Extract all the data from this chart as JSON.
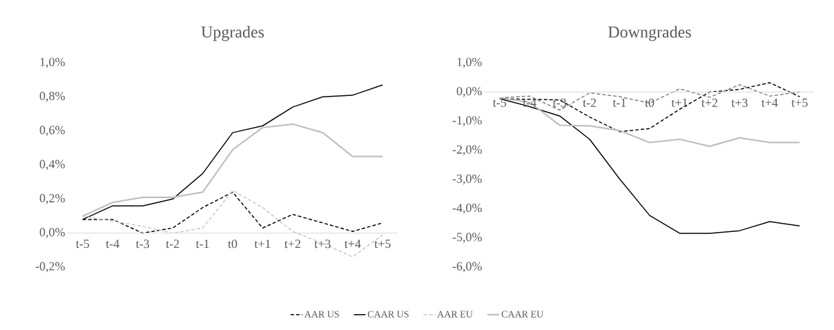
{
  "chart_data": [
    {
      "type": "line",
      "title": "Upgrades",
      "categories": [
        "t-5",
        "t-4",
        "t-3",
        "t-2",
        "t-1",
        "t0",
        "t+1",
        "t+2",
        "t+3",
        "t+4",
        "t+5"
      ],
      "ylim": [
        -0.2,
        1.0
      ],
      "yticks": [
        {
          "value": -0.2,
          "label": "-0,2%"
        },
        {
          "value": 0.0,
          "label": "0,0%"
        },
        {
          "value": 0.2,
          "label": "0,2%"
        },
        {
          "value": 0.4,
          "label": "0,4%"
        },
        {
          "value": 0.6,
          "label": "0,6%"
        },
        {
          "value": 0.8,
          "label": "0,8%"
        },
        {
          "value": 1.0,
          "label": "1,0%"
        }
      ],
      "grid": false,
      "legend": "bottom",
      "series": [
        {
          "name": "AAR US",
          "color": "#000000",
          "line_style": "dashed",
          "values": [
            0.08,
            0.08,
            0.0,
            0.03,
            0.15,
            0.24,
            0.03,
            0.11,
            0.06,
            0.01,
            0.06
          ]
        },
        {
          "name": "CAAR US",
          "color": "#000000",
          "line_style": "solid",
          "values": [
            0.08,
            0.16,
            0.16,
            0.2,
            0.35,
            0.59,
            0.63,
            0.74,
            0.8,
            0.81,
            0.87
          ]
        },
        {
          "name": "AAR EU",
          "color": "#c8c8c8",
          "line_style": "dashed",
          "values": [
            0.1,
            0.07,
            0.04,
            0.0,
            0.03,
            0.25,
            0.15,
            0.01,
            -0.06,
            -0.14,
            -0.01
          ]
        },
        {
          "name": "CAAR EU",
          "color": "#bfbfbf",
          "line_style": "solid",
          "values": [
            0.1,
            0.18,
            0.21,
            0.21,
            0.24,
            0.49,
            0.62,
            0.64,
            0.59,
            0.45,
            0.45
          ]
        }
      ]
    },
    {
      "type": "line",
      "title": "Downgrades",
      "categories": [
        "t-5",
        "t-4",
        "t-3",
        "t-2",
        "t-1",
        "t0",
        "t+1",
        "t+2",
        "t+3",
        "t+4",
        "t+5"
      ],
      "ylim": [
        -6.0,
        1.0
      ],
      "yticks": [
        {
          "value": -6.0,
          "label": "-6,0%"
        },
        {
          "value": -5.0,
          "label": "-5,0%"
        },
        {
          "value": -4.0,
          "label": "-4,0%"
        },
        {
          "value": -3.0,
          "label": "-3,0%"
        },
        {
          "value": -2.0,
          "label": "-2,0%"
        },
        {
          "value": -1.0,
          "label": "-1,0%"
        },
        {
          "value": 0.0,
          "label": "0,0%"
        },
        {
          "value": 1.0,
          "label": "1,0%"
        }
      ],
      "grid": false,
      "series": [
        {
          "color": "#000000",
          "line_style": "dashed",
          "values": [
            -0.23,
            -0.25,
            -0.27,
            -0.86,
            -1.36,
            -1.25,
            -0.59,
            0.0,
            0.09,
            0.32,
            -0.16
          ]
        },
        {
          "color": "#000000",
          "line_style": "solid",
          "values": [
            -0.23,
            -0.5,
            -0.82,
            -1.62,
            -2.98,
            -4.23,
            -4.84,
            -4.84,
            -4.75,
            -4.44,
            -4.59
          ]
        },
        {
          "color": "#808080",
          "line_style": "dashed",
          "values": [
            -0.2,
            -0.14,
            -0.62,
            -0.03,
            -0.16,
            -0.38,
            0.11,
            -0.18,
            0.25,
            -0.14,
            0.0
          ]
        },
        {
          "color": "#bfbfbf",
          "line_style": "solid",
          "values": [
            -0.21,
            -0.35,
            -1.14,
            -1.16,
            -1.32,
            -1.73,
            -1.62,
            -1.86,
            -1.57,
            -1.73,
            -1.73
          ]
        }
      ]
    }
  ]
}
